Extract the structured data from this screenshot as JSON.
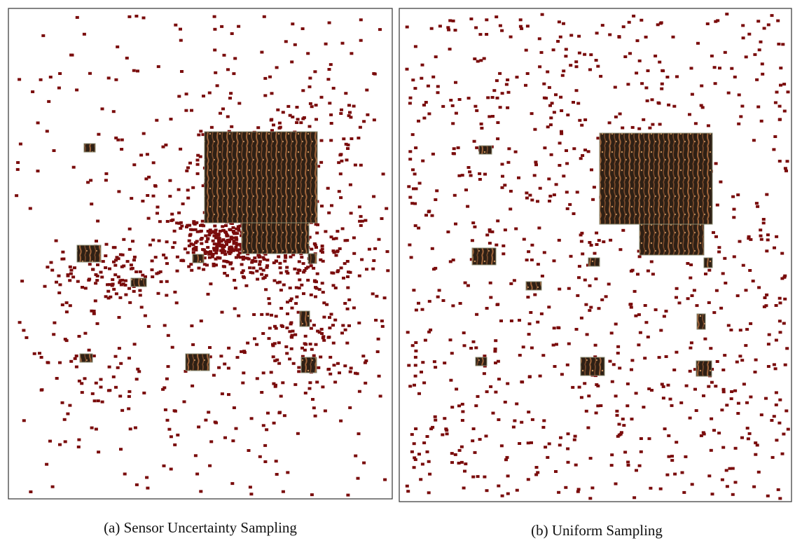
{
  "figure": {
    "panels": [
      {
        "caption": "(a) Sensor Uncertainty Sampling"
      },
      {
        "caption": "(b) Uniform Sampling"
      }
    ]
  }
}
